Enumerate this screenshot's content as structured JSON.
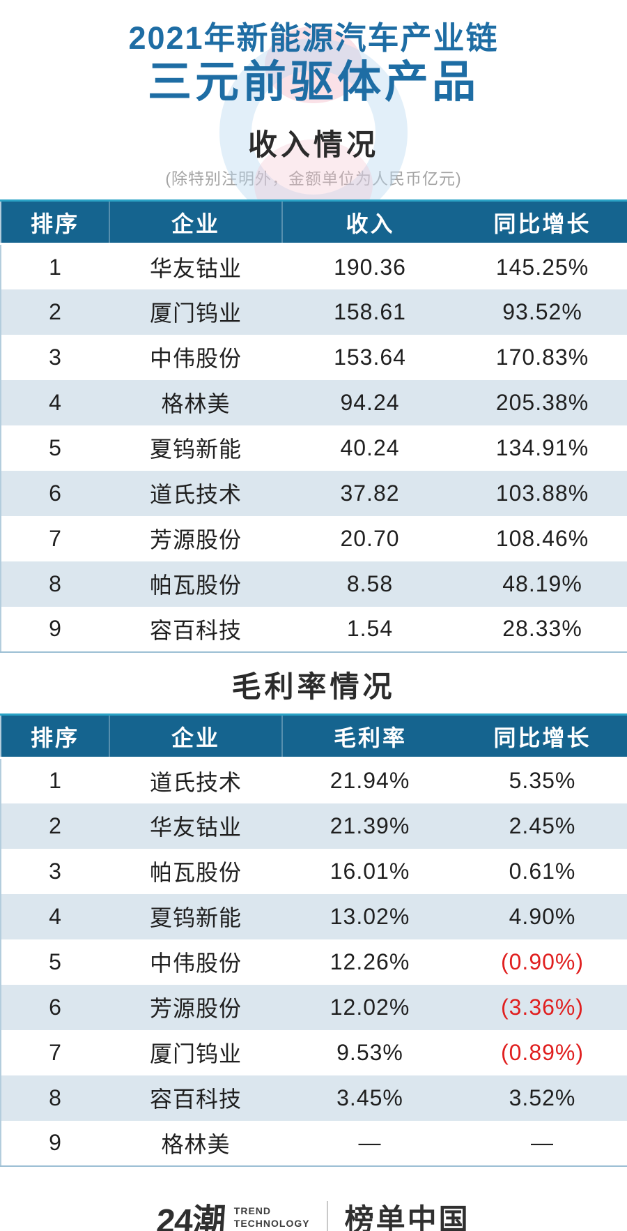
{
  "header": {
    "title_line1": "2021年新能源汽车产业链",
    "title_line2": "三元前驱体产品"
  },
  "chart_data": [
    {
      "type": "table",
      "title": "收入情况",
      "subtitle": "(除特别注明外，金额单位为人民币亿元)",
      "columns": [
        "排序",
        "企业",
        "收入",
        "同比增长"
      ],
      "rows": [
        [
          "1",
          "华友钴业",
          "190.36",
          "145.25%"
        ],
        [
          "2",
          "厦门钨业",
          "158.61",
          "93.52%"
        ],
        [
          "3",
          "中伟股份",
          "153.64",
          "170.83%"
        ],
        [
          "4",
          "格林美",
          "94.24",
          "205.38%"
        ],
        [
          "5",
          "夏钨新能",
          "40.24",
          "134.91%"
        ],
        [
          "6",
          "道氏技术",
          "37.82",
          "103.88%"
        ],
        [
          "7",
          "芳源股份",
          "20.70",
          "108.46%"
        ],
        [
          "8",
          "帕瓦股份",
          "8.58",
          "48.19%"
        ],
        [
          "9",
          "容百科技",
          "1.54",
          "28.33%"
        ]
      ]
    },
    {
      "type": "table",
      "title": "毛利率情况",
      "subtitle": "",
      "columns": [
        "排序",
        "企业",
        "毛利率",
        "同比增长"
      ],
      "rows": [
        [
          "1",
          "道氏技术",
          "21.94%",
          "5.35%"
        ],
        [
          "2",
          "华友钴业",
          "21.39%",
          "2.45%"
        ],
        [
          "3",
          "帕瓦股份",
          "16.01%",
          "0.61%"
        ],
        [
          "4",
          "夏钨新能",
          "13.02%",
          "4.90%"
        ],
        [
          "5",
          "中伟股份",
          "12.26%",
          "(0.90%)"
        ],
        [
          "6",
          "芳源股份",
          "12.02%",
          "(3.36%)"
        ],
        [
          "7",
          "厦门钨业",
          "9.53%",
          "(0.89%)"
        ],
        [
          "8",
          "容百科技",
          "3.45%",
          "3.52%"
        ],
        [
          "9",
          "格林美",
          "—",
          "—"
        ]
      ]
    }
  ],
  "footer": {
    "logo_main": "24潮",
    "logo_sub_line1": "TREND",
    "logo_sub_line2": "TECHNOLOGY",
    "brand": "榜单中国"
  },
  "colors": {
    "accent_blue": "#1e6da4",
    "table_header_bg": "#15648f",
    "table_header_topline": "#2ba3c6",
    "row_alt_bg": "#dbe6ee",
    "negative_red": "#e01f1f"
  }
}
